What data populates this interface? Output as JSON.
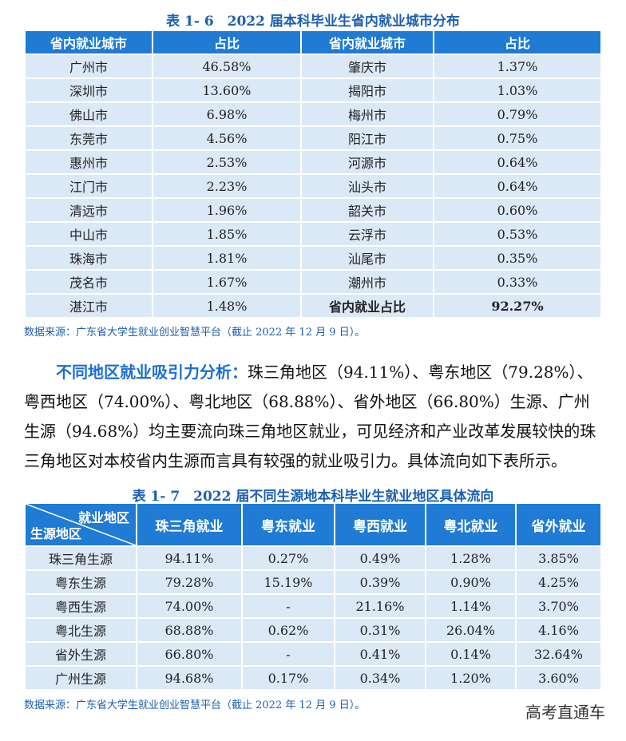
{
  "table1": {
    "title": "表 1- 6　2022 届本科毕业生省内就业城市分布",
    "headers": [
      "省内就业城市",
      "占比",
      "省内就业城市",
      "占比"
    ],
    "rows": [
      [
        "广州市",
        "46.58%",
        "肇庆市",
        "1.37%"
      ],
      [
        "深圳市",
        "13.60%",
        "揭阳市",
        "1.03%"
      ],
      [
        "佛山市",
        "6.98%",
        "梅州市",
        "0.79%"
      ],
      [
        "东莞市",
        "4.56%",
        "阳江市",
        "0.75%"
      ],
      [
        "惠州市",
        "2.53%",
        "河源市",
        "0.64%"
      ],
      [
        "江门市",
        "2.23%",
        "汕头市",
        "0.64%"
      ],
      [
        "清远市",
        "1.96%",
        "韶关市",
        "0.60%"
      ],
      [
        "中山市",
        "1.85%",
        "云浮市",
        "0.53%"
      ],
      [
        "珠海市",
        "1.81%",
        "汕尾市",
        "0.35%"
      ],
      [
        "茂名市",
        "1.67%",
        "潮州市",
        "0.33%"
      ],
      [
        "湛江市",
        "1.48%",
        "省内就业占比",
        "92.27%"
      ]
    ],
    "source": "数据来源：广东省大学生就业创业智慧平台（截止 2022 年 12 月 9 日）。"
  },
  "paragraph": {
    "lead": "不同地区就业吸引力分析：",
    "text": "珠三角地区（94.11%）、粤东地区（79.28%）、粤西地区（74.00%）、粤北地区（68.88%）、省外地区（66.80%）生源、广州生源（94.68%）均主要流向珠三角地区就业，可见经济和产业改革发展较快的珠三角地区对本校省内生源而言具有较强的就业吸引力。具体流向如下表所示。"
  },
  "table2": {
    "title": "表 1- 7　2022 届不同生源地本科毕业生就业地区具体流向",
    "corner_top": "就业地区",
    "corner_bottom": "生源地区",
    "headers": [
      "珠三角就业",
      "粤东就业",
      "粤西就业",
      "粤北就业",
      "省外就业"
    ],
    "rows": [
      [
        "珠三角生源",
        "94.11%",
        "0.27%",
        "0.49%",
        "1.28%",
        "3.85%"
      ],
      [
        "粤东生源",
        "79.28%",
        "15.19%",
        "0.39%",
        "0.90%",
        "4.25%"
      ],
      [
        "粤西生源",
        "74.00%",
        "-",
        "21.16%",
        "1.14%",
        "3.70%"
      ],
      [
        "粤北生源",
        "68.88%",
        "0.62%",
        "0.31%",
        "26.04%",
        "4.16%"
      ],
      [
        "省外生源",
        "66.80%",
        "-",
        "0.41%",
        "0.14%",
        "32.64%"
      ],
      [
        "广州生源",
        "94.68%",
        "0.17%",
        "0.34%",
        "1.20%",
        "3.60%"
      ]
    ],
    "source": "数据来源：广东省大学生就业创业智慧平台（截止 2022 年 12 月 9 日）。"
  },
  "watermark": "高考直通车"
}
